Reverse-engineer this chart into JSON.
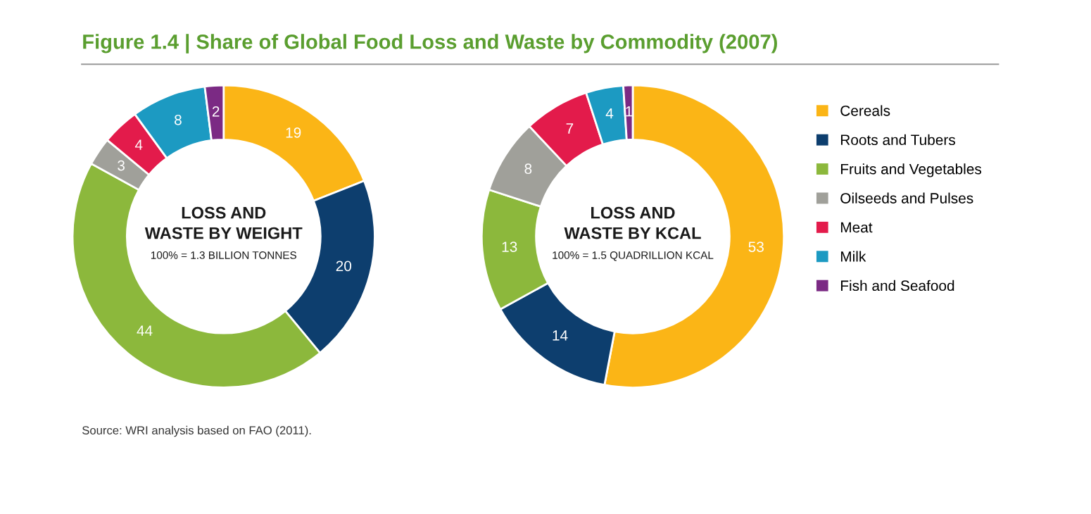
{
  "chart_data": [
    {
      "type": "donut",
      "title": "Figure 1.4 | Share of Global Food Loss and Waste by Commodity (2007)",
      "categories": [
        "Cereals",
        "Roots and Tubers",
        "Fruits and Vegetables",
        "Oilseeds and Pulses",
        "Meat",
        "Milk",
        "Fish and Seafood"
      ],
      "values": [
        19,
        20,
        44,
        3,
        4,
        8,
        2
      ],
      "colors": [
        "#fbb516",
        "#0d3e6e",
        "#8cb83c",
        "#a0a09a",
        "#e31b4b",
        "#1c9ac2",
        "#7b2a84"
      ],
      "data_labels": true,
      "legend": "right",
      "annotations": [
        "LOSS AND\nWASTE BY WEIGHT",
        "100% = 1.3 BILLION TONNES",
        "Source: WRI analysis based on FAO (2011)."
      ]
    },
    {
      "type": "donut",
      "categories": [
        null,
        null,
        null,
        null,
        null,
        null,
        null
      ],
      "values": [
        53,
        14,
        13,
        8,
        7,
        4,
        1
      ],
      "colors": [
        "#fbb516",
        "#0d3e6e",
        "#8cb83c",
        "#a0a09a",
        "#e31b4b",
        "#1c9ac2",
        "#7b2a84"
      ],
      "data_labels": true,
      "annotations": [
        "LOSS AND\nWASTE BY KCAL",
        "100% = 1.5 QUADRILLION KCAL"
      ]
    }
  ]
}
